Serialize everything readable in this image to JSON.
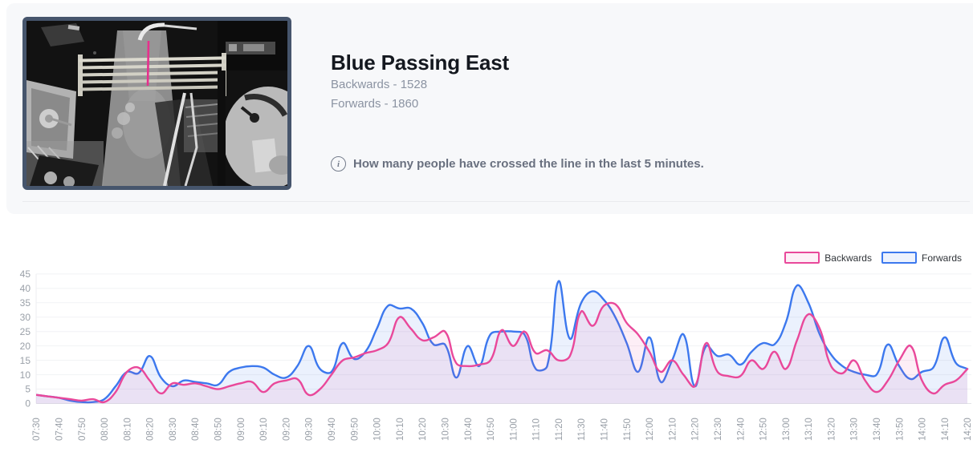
{
  "header": {
    "title": "Blue Passing East",
    "backwards_count": "Backwards - 1528",
    "forwards_count": "Forwards - 1860",
    "info_text": "How many people have crossed the line in the last 5 minutes.",
    "thumbnail": {
      "description": "overhead camera view with counting line",
      "border_color": "#46556c",
      "counting_line_color": "#e6308d"
    }
  },
  "chart_data": {
    "type": "line",
    "title": "",
    "xlabel": "",
    "ylabel": "",
    "ylim": [
      0,
      45
    ],
    "y_ticks": [
      0,
      5,
      10,
      15,
      20,
      25,
      30,
      35,
      40,
      45
    ],
    "grid": true,
    "legend_position": "top-right",
    "smoothing": "bezier",
    "x_tick_step": 2,
    "x": [
      "07:30",
      "07:35",
      "07:40",
      "07:45",
      "07:50",
      "07:55",
      "08:00",
      "08:05",
      "08:10",
      "08:15",
      "08:20",
      "08:25",
      "08:30",
      "08:35",
      "08:40",
      "08:45",
      "08:50",
      "08:55",
      "09:00",
      "09:05",
      "09:10",
      "09:15",
      "09:20",
      "09:25",
      "09:30",
      "09:35",
      "09:40",
      "09:45",
      "09:50",
      "09:55",
      "10:00",
      "10:05",
      "10:10",
      "10:15",
      "10:20",
      "10:25",
      "10:30",
      "10:35",
      "10:40",
      "10:45",
      "10:50",
      "10:55",
      "11:00",
      "11:05",
      "11:10",
      "11:15",
      "11:20",
      "11:25",
      "11:30",
      "11:35",
      "11:40",
      "11:45",
      "11:50",
      "11:55",
      "12:00",
      "12:05",
      "12:10",
      "12:15",
      "12:20",
      "12:25",
      "12:30",
      "12:35",
      "12:40",
      "12:45",
      "12:50",
      "12:55",
      "13:00",
      "13:05",
      "13:10",
      "13:15",
      "13:20",
      "13:25",
      "13:30",
      "13:35",
      "13:40",
      "13:45",
      "13:50",
      "13:55",
      "14:00",
      "14:05",
      "14:10",
      "14:15",
      "14:20"
    ],
    "series": [
      {
        "name": "Backwards",
        "color": "#e9489a",
        "fill": "rgba(233,72,154,0.09)",
        "legend_fill": "#fdf0f7",
        "values": [
          3,
          2.5,
          2,
          1.5,
          1,
          1.5,
          0.5,
          4,
          11,
          12.5,
          8,
          3.5,
          7,
          6.5,
          7,
          6,
          5,
          6,
          7,
          7.5,
          4,
          7,
          8,
          8.5,
          3,
          5,
          10,
          15,
          16,
          17.5,
          18.5,
          21,
          30,
          26,
          22,
          23,
          25,
          14,
          13,
          13.5,
          15,
          25.5,
          20,
          25,
          17.5,
          18.5,
          15,
          16.5,
          32,
          27,
          34,
          34.5,
          28,
          24,
          18,
          11,
          15,
          10,
          6,
          21,
          11,
          9.5,
          9.5,
          15,
          12,
          18,
          12,
          22,
          31,
          26,
          13,
          10.5,
          15,
          8,
          4,
          8,
          15,
          20,
          8,
          3.5,
          6.5,
          8,
          12
        ]
      },
      {
        "name": "Forwards",
        "color": "#3c78ee",
        "fill": "rgba(60,120,238,0.10)",
        "legend_fill": "#edf2fd",
        "values": [
          3,
          2.5,
          2,
          1,
          0.5,
          0.5,
          1.5,
          6,
          11,
          10.5,
          16.5,
          9,
          6,
          8,
          7.5,
          7,
          6.5,
          11,
          12.5,
          13,
          12.5,
          10,
          9,
          13,
          20,
          12,
          11,
          21,
          15.5,
          18,
          26,
          34,
          33,
          33,
          28,
          20.5,
          20.5,
          9,
          20,
          13,
          24,
          25,
          25,
          24,
          12,
          13,
          42.5,
          22.5,
          35,
          39,
          36,
          30,
          21,
          11,
          23,
          7.5,
          15,
          24,
          6,
          20,
          16.5,
          17,
          13.5,
          18,
          21,
          20.5,
          28,
          41,
          35,
          24,
          17,
          13,
          11,
          10,
          10,
          20.5,
          13,
          8.5,
          11,
          12.5,
          23,
          14,
          12
        ]
      }
    ]
  }
}
